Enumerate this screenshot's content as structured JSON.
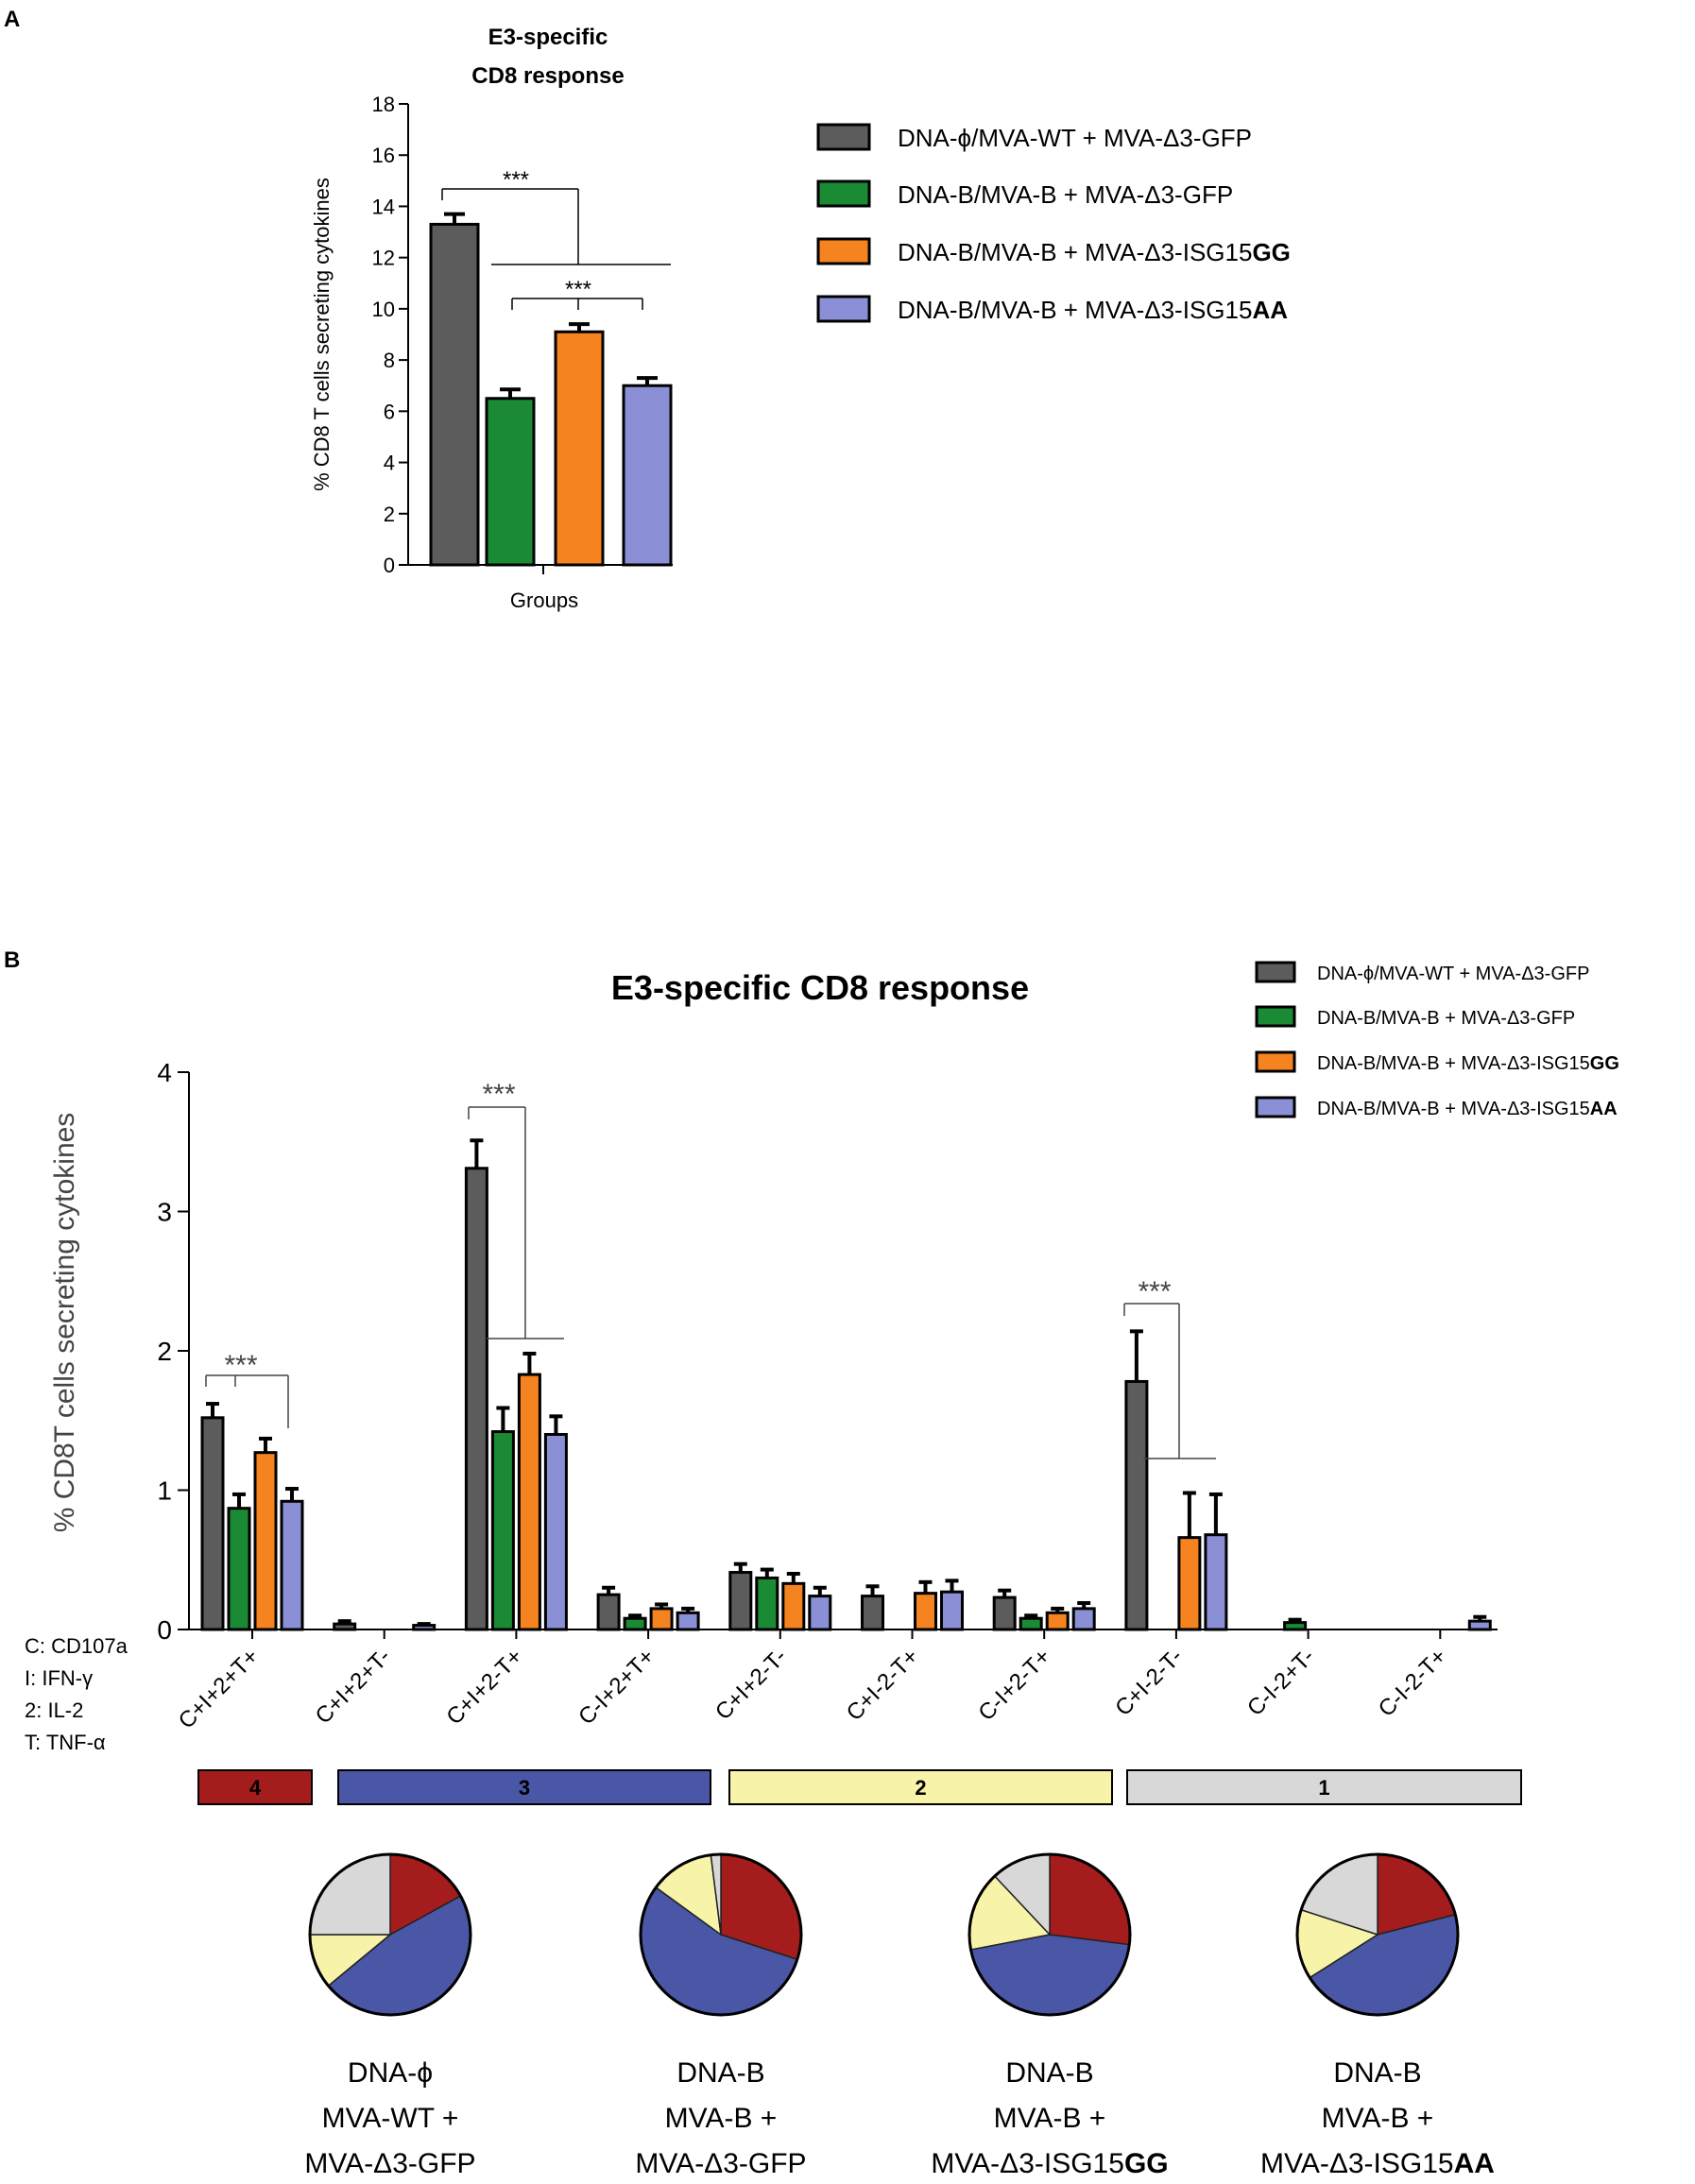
{
  "panel_a": {
    "label": "A"
  },
  "panel_b": {
    "label": "B"
  },
  "colors": {
    "gray": "#5c5c5c",
    "green": "#1a8a34",
    "orange": "#f5831f",
    "lavender": "#8a8fd6",
    "cat4": "#a51c1c",
    "cat3": "#4a56a6",
    "cat2": "#f7f3a8",
    "cat1": "#d8d8d8"
  },
  "groups": [
    {
      "prefix": "DNA-ϕ/MVA-WT + MVA-Δ3-GFP",
      "bold": ""
    },
    {
      "prefix": "DNA-B/MVA-B + MVA-Δ3-GFP",
      "bold": ""
    },
    {
      "prefix": "DNA-B/MVA-B + MVA-Δ3-ISG15",
      "bold": "GG"
    },
    {
      "prefix": "DNA-B/MVA-B + MVA-Δ3-ISG15",
      "bold": "AA"
    }
  ],
  "chart_data": [
    {
      "type": "bar",
      "title": "E3-specific CD8 response",
      "title_lines": [
        "E3-specific",
        "CD8 response"
      ],
      "xlabel": "Groups",
      "ylabel": "% CD8 T cells secreting cytokines",
      "ylim": [
        0,
        18
      ],
      "yticks": [
        0,
        2,
        4,
        6,
        8,
        10,
        12,
        14,
        16,
        18
      ],
      "series": [
        {
          "name": "DNA-ϕ/MVA-WT + MVA-Δ3-GFP",
          "value": 13.3,
          "error": 0.4
        },
        {
          "name": "DNA-B/MVA-B + MVA-Δ3-GFP",
          "value": 6.5,
          "error": 0.35
        },
        {
          "name": "DNA-B/MVA-B + MVA-Δ3-ISG15GG",
          "value": 9.1,
          "error": 0.3
        },
        {
          "name": "DNA-B/MVA-B + MVA-Δ3-ISG15AA",
          "value": 7.0,
          "error": 0.3
        }
      ],
      "annotations": [
        "***",
        "***"
      ]
    },
    {
      "type": "bar",
      "title": "E3-specific CD8 response",
      "ylabel": "% CD8T cells secreting cytokines",
      "ylim": [
        0,
        4
      ],
      "yticks": [
        0,
        1,
        2,
        3,
        4
      ],
      "categories": [
        "C+I+2+T+",
        "C+I+2+T-",
        "C+I+2-T+",
        "C-I+2+T+",
        "C+I+2-T-",
        "C+I-2-T+",
        "C-I+2-T+",
        "C+I-2-T-",
        "C-I-2+T-",
        "C-I-2-T+"
      ],
      "series": [
        {
          "name": "DNA-ϕ/MVA-WT + MVA-Δ3-GFP",
          "values": [
            1.52,
            0.04,
            3.31,
            0.25,
            0.41,
            0.24,
            0.23,
            1.78,
            0,
            0
          ],
          "errors": [
            0.1,
            0.02,
            0.2,
            0.05,
            0.06,
            0.07,
            0.05,
            0.36,
            0,
            0
          ]
        },
        {
          "name": "DNA-B/MVA-B + MVA-Δ3-GFP",
          "values": [
            0.87,
            0,
            1.42,
            0.08,
            0.37,
            0,
            0.08,
            0,
            0.05,
            0
          ],
          "errors": [
            0.1,
            0,
            0.17,
            0.02,
            0.06,
            0,
            0.02,
            0,
            0.02,
            0
          ]
        },
        {
          "name": "DNA-B/MVA-B + MVA-Δ3-ISG15GG",
          "values": [
            1.27,
            0,
            1.83,
            0.15,
            0.33,
            0.26,
            0.12,
            0.66,
            0,
            0
          ],
          "errors": [
            0.1,
            0,
            0.15,
            0.03,
            0.07,
            0.08,
            0.03,
            0.32,
            0,
            0
          ]
        },
        {
          "name": "DNA-B/MVA-B + MVA-Δ3-ISG15AA",
          "values": [
            0.92,
            0.03,
            1.4,
            0.12,
            0.24,
            0.27,
            0.15,
            0.68,
            0,
            0.06
          ],
          "errors": [
            0.09,
            0.01,
            0.13,
            0.03,
            0.06,
            0.08,
            0.04,
            0.29,
            0,
            0.03
          ]
        }
      ],
      "annotations": [
        "***",
        "***",
        "***"
      ],
      "key": [
        "C: CD107a",
        "I: IFN-γ",
        "2: IL-2",
        "T: TNF-α"
      ],
      "functionality_bands": [
        {
          "label": "4",
          "color": "#a51c1c",
          "from": 0,
          "to": 0
        },
        {
          "label": "3",
          "color": "#4a56a6",
          "from": 1,
          "to": 3
        },
        {
          "label": "2",
          "color": "#f7f3a8",
          "from": 4,
          "to": 6
        },
        {
          "label": "1",
          "color": "#d8d8d8",
          "from": 7,
          "to": 9
        }
      ]
    },
    {
      "type": "pie",
      "slice_order": [
        "4",
        "3",
        "2",
        "1"
      ],
      "pies": [
        {
          "caption": [
            "DNA-ϕ",
            "MVA-WT +",
            "MVA-Δ3-GFP"
          ],
          "caption_bold": "",
          "slices": [
            17,
            47,
            11,
            25
          ]
        },
        {
          "caption": [
            "DNA-B",
            "MVA-B +",
            "MVA-Δ3-GFP"
          ],
          "caption_bold": "",
          "slices": [
            30,
            55,
            13,
            2
          ]
        },
        {
          "caption": [
            "DNA-B",
            "MVA-B +",
            "MVA-Δ3-ISG15"
          ],
          "caption_bold": "GG",
          "slices": [
            27,
            45,
            16,
            12
          ]
        },
        {
          "caption": [
            "DNA-B",
            "MVA-B +",
            "MVA-Δ3-ISG15"
          ],
          "caption_bold": "AA",
          "slices": [
            21,
            45,
            14,
            20
          ]
        }
      ]
    }
  ]
}
